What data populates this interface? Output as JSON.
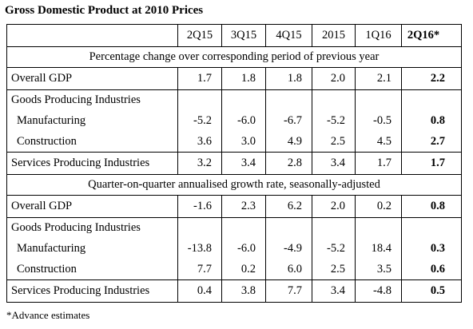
{
  "title": "Gross Domestic Product at 2010 Prices",
  "table": {
    "columns": [
      "2Q15",
      "3Q15",
      "4Q15",
      "2015",
      "1Q16",
      "2Q16*"
    ],
    "sections": [
      {
        "heading": "Percentage change over corresponding period of previous year",
        "groups": [
          [
            {
              "label": "Overall GDP",
              "values": [
                "1.7",
                "1.8",
                "1.8",
                "2.0",
                "2.1",
                "2.2"
              ]
            }
          ],
          [
            {
              "label": "Goods Producing Industries"
            },
            {
              "label": "Manufacturing",
              "values": [
                "-5.2",
                "-6.0",
                "-6.7",
                "-5.2",
                "-0.5",
                "0.8"
              ]
            },
            {
              "label": "Construction",
              "values": [
                "3.6",
                "3.0",
                "4.9",
                "2.5",
                "4.5",
                "2.7"
              ]
            }
          ],
          [
            {
              "label": "Services Producing Industries",
              "values": [
                "3.2",
                "3.4",
                "2.8",
                "3.4",
                "1.7",
                "1.7"
              ]
            }
          ]
        ]
      },
      {
        "heading": "Quarter-on-quarter annualised growth rate, seasonally-adjusted",
        "groups": [
          [
            {
              "label": "Overall GDP",
              "values": [
                "-1.6",
                "2.3",
                "6.2",
                "2.0",
                "0.2",
                "0.8"
              ]
            }
          ],
          [
            {
              "label": "Goods Producing Industries"
            },
            {
              "label": "Manufacturing",
              "values": [
                "-13.8",
                "-6.0",
                "-4.9",
                "-5.2",
                "18.4",
                "0.3"
              ]
            },
            {
              "label": "Construction",
              "values": [
                "7.7",
                "0.2",
                "6.0",
                "2.5",
                "3.5",
                "0.6"
              ]
            }
          ],
          [
            {
              "label": "Services Producing Industries",
              "values": [
                "0.4",
                "3.8",
                "7.7",
                "3.4",
                "-4.8",
                "0.5"
              ]
            }
          ]
        ]
      }
    ]
  },
  "footnote": "*Advance estimates"
}
